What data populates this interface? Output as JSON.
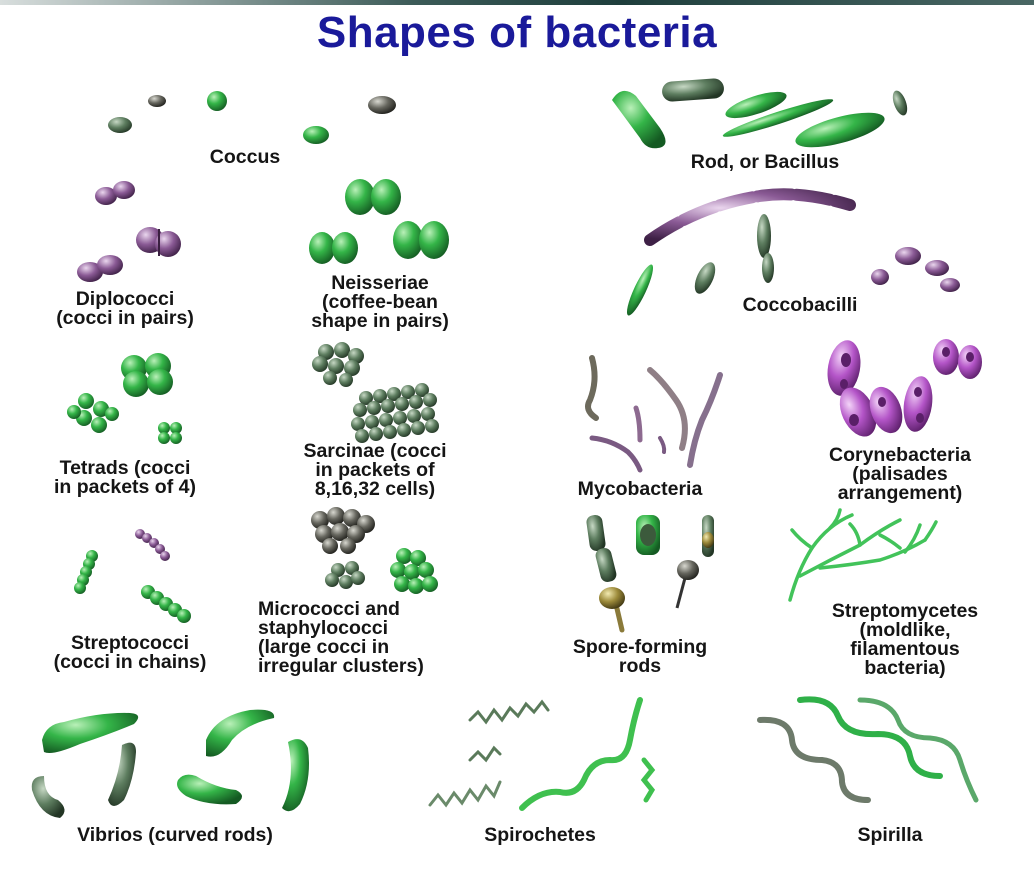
{
  "title": "Shapes of bacteria",
  "panels": [
    {
      "id": "coccus",
      "label": "Coccus"
    },
    {
      "id": "rod",
      "label": "Rod, or Bacillus"
    },
    {
      "id": "diplococci",
      "label": "Diplococci\n(cocci in pairs)"
    },
    {
      "id": "neisseriae",
      "label": "Neisseriae\n(coffee-bean\nshape in pairs)"
    },
    {
      "id": "coccobacilli",
      "label": "Coccobacilli"
    },
    {
      "id": "tetrads",
      "label": "Tetrads (cocci\nin packets of 4)"
    },
    {
      "id": "sarcinae",
      "label": "Sarcinae (cocci\nin packets of\n8,16,32 cells)"
    },
    {
      "id": "mycobacteria",
      "label": "Mycobacteria"
    },
    {
      "id": "corynebacteria",
      "label": "Corynebacteria\n(palisades\narrangement)"
    },
    {
      "id": "streptococci",
      "label": "Streptococci\n(cocci in chains)"
    },
    {
      "id": "micrococci",
      "label": "Micrococci and\nstaphylococci\n(large cocci in\nirregular clusters)"
    },
    {
      "id": "spore",
      "label": "Spore-forming\nrods"
    },
    {
      "id": "streptomycetes",
      "label": "Streptomycetes\n(moldlike,\nfilamentous\nbacteria)"
    },
    {
      "id": "vibrios",
      "label": "Vibrios (curved rods)"
    },
    {
      "id": "spirochetes",
      "label": "Spirochetes"
    },
    {
      "id": "spirilla",
      "label": "Spirilla"
    }
  ],
  "colors": {
    "title": "#1a1a9a",
    "green": "#2fb34a",
    "dark_green": "#3d6b44",
    "purple": "#8a5a95",
    "magenta": "#b455c8",
    "gray": "#707070"
  }
}
